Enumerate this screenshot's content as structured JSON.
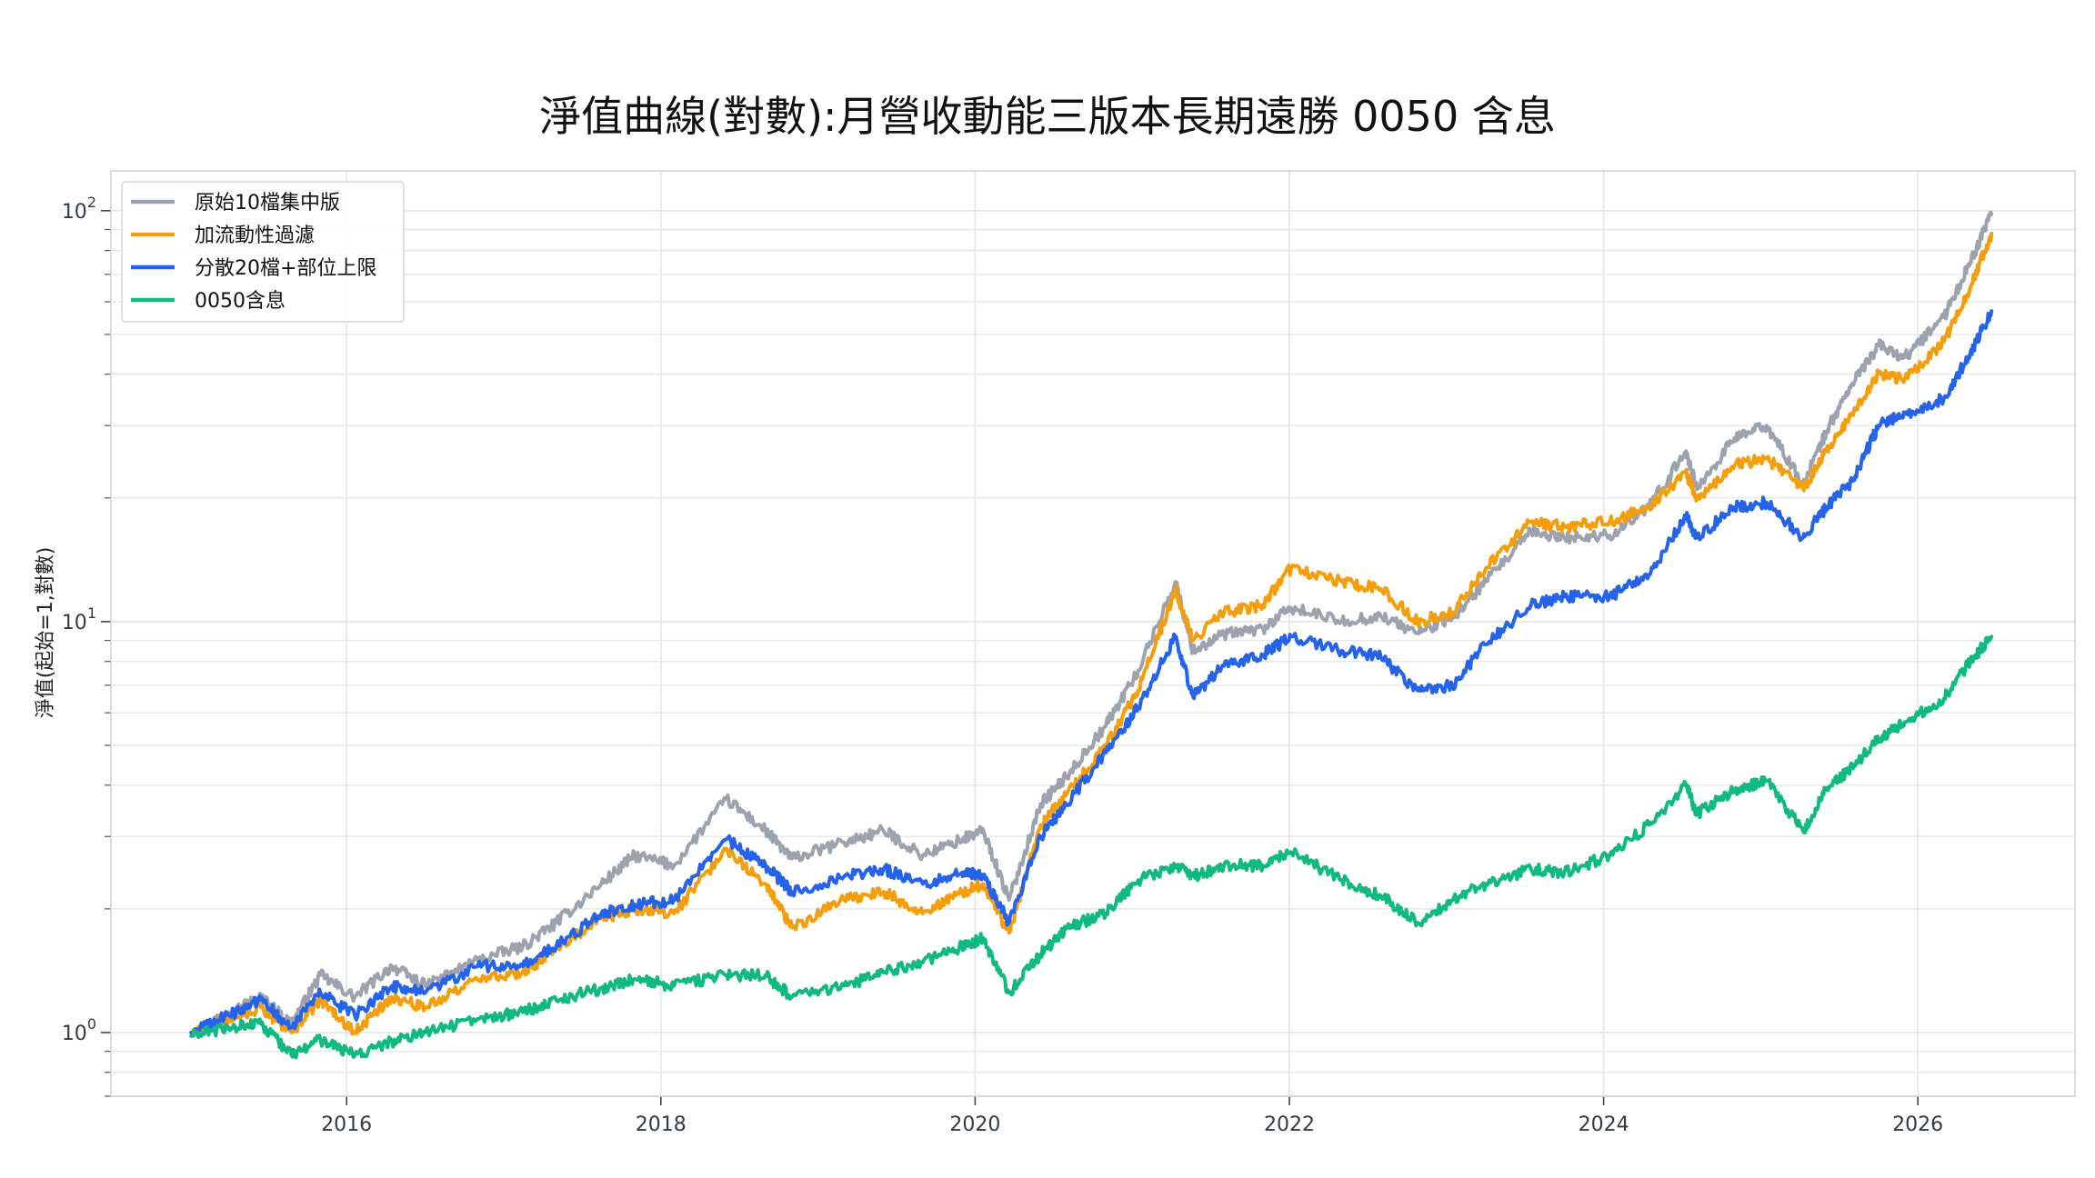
{
  "chart_data": {
    "type": "line",
    "title": "淨值曲線(對數):月營收動能三版本長期遠勝 0050 含息",
    "xlabel": "",
    "ylabel": "淨值(起始=1,對數)",
    "yscale": "log",
    "ylim": [
      0.7,
      125
    ],
    "xlim": [
      "2014-07-01",
      "2027-01-01"
    ],
    "x_ticks": [
      "2016",
      "2018",
      "2020",
      "2022",
      "2024",
      "2026"
    ],
    "y_ticks": [
      {
        "base": "10",
        "exp": "0",
        "value": 1
      },
      {
        "base": "10",
        "exp": "1",
        "value": 10
      },
      {
        "base": "10",
        "exp": "2",
        "value": 100
      }
    ],
    "grid": true,
    "legend_position": "top-left",
    "series": [
      {
        "name": "原始10檔集中版",
        "color": "#9ca3af",
        "points": [
          [
            "2015-01-05",
            1.0
          ],
          [
            "2015-04-01",
            1.12
          ],
          [
            "2015-06-15",
            1.22
          ],
          [
            "2015-08-25",
            1.05
          ],
          [
            "2015-11-01",
            1.38
          ],
          [
            "2016-01-20",
            1.22
          ],
          [
            "2016-04-15",
            1.45
          ],
          [
            "2016-07-01",
            1.3
          ],
          [
            "2016-11-01",
            1.5
          ],
          [
            "2017-02-15",
            1.62
          ],
          [
            "2017-05-01",
            1.85
          ],
          [
            "2017-08-15",
            2.3
          ],
          [
            "2017-11-01",
            2.7
          ],
          [
            "2018-02-01",
            2.55
          ],
          [
            "2018-06-01",
            3.7
          ],
          [
            "2018-09-01",
            3.1
          ],
          [
            "2018-11-01",
            2.65
          ],
          [
            "2019-03-01",
            2.9
          ],
          [
            "2019-06-01",
            3.1
          ],
          [
            "2019-09-01",
            2.7
          ],
          [
            "2019-12-01",
            2.95
          ],
          [
            "2020-01-20",
            3.1
          ],
          [
            "2020-03-19",
            2.1
          ],
          [
            "2020-06-01",
            3.6
          ],
          [
            "2020-08-01",
            4.2
          ],
          [
            "2020-11-01",
            5.6
          ],
          [
            "2021-01-15",
            7.6
          ],
          [
            "2021-04-10",
            12.5
          ],
          [
            "2021-05-20",
            8.5
          ],
          [
            "2021-08-01",
            9.3
          ],
          [
            "2021-11-01",
            9.6
          ],
          [
            "2022-01-05",
            10.8
          ],
          [
            "2022-05-01",
            10.0
          ],
          [
            "2022-08-01",
            10.3
          ],
          [
            "2022-10-25",
            9.4
          ],
          [
            "2023-01-15",
            10.2
          ],
          [
            "2023-04-01",
            12.5
          ],
          [
            "2023-07-15",
            16.5
          ],
          [
            "2023-10-01",
            16.0
          ],
          [
            "2024-01-15",
            16.2
          ],
          [
            "2024-04-15",
            19.0
          ],
          [
            "2024-07-10",
            26.0
          ],
          [
            "2024-08-05",
            21.0
          ],
          [
            "2024-11-01",
            28.0
          ],
          [
            "2025-01-15",
            30.0
          ],
          [
            "2025-04-08",
            21.5
          ],
          [
            "2025-06-01",
            29.0
          ],
          [
            "2025-08-01",
            38.0
          ],
          [
            "2025-10-01",
            47.0
          ],
          [
            "2025-12-01",
            44.0
          ],
          [
            "2026-03-01",
            55.0
          ],
          [
            "2026-05-01",
            75.0
          ],
          [
            "2026-06-20",
            98.0
          ]
        ]
      },
      {
        "name": "加流動性過濾",
        "color": "#f59e0b",
        "points": [
          [
            "2015-01-05",
            1.0
          ],
          [
            "2015-04-01",
            1.08
          ],
          [
            "2015-06-15",
            1.15
          ],
          [
            "2015-08-25",
            1.0
          ],
          [
            "2015-11-01",
            1.2
          ],
          [
            "2016-01-20",
            1.0
          ],
          [
            "2016-04-15",
            1.22
          ],
          [
            "2016-07-01",
            1.15
          ],
          [
            "2016-11-01",
            1.35
          ],
          [
            "2017-02-15",
            1.4
          ],
          [
            "2017-05-01",
            1.6
          ],
          [
            "2017-08-15",
            1.9
          ],
          [
            "2017-11-01",
            2.0
          ],
          [
            "2018-02-01",
            1.95
          ],
          [
            "2018-06-01",
            2.8
          ],
          [
            "2018-09-01",
            2.3
          ],
          [
            "2018-11-01",
            1.8
          ],
          [
            "2019-03-01",
            2.1
          ],
          [
            "2019-06-01",
            2.2
          ],
          [
            "2019-09-01",
            1.95
          ],
          [
            "2019-12-01",
            2.2
          ],
          [
            "2020-01-20",
            2.3
          ],
          [
            "2020-03-19",
            1.75
          ],
          [
            "2020-06-01",
            3.2
          ],
          [
            "2020-08-01",
            3.8
          ],
          [
            "2020-11-01",
            5.0
          ],
          [
            "2021-01-15",
            6.8
          ],
          [
            "2021-04-10",
            12.0
          ],
          [
            "2021-05-20",
            9.0
          ],
          [
            "2021-08-01",
            10.5
          ],
          [
            "2021-11-01",
            11.0
          ],
          [
            "2022-01-05",
            13.5
          ],
          [
            "2022-05-01",
            12.5
          ],
          [
            "2022-08-01",
            12.0
          ],
          [
            "2022-10-25",
            10.0
          ],
          [
            "2023-01-15",
            10.5
          ],
          [
            "2023-04-01",
            13.5
          ],
          [
            "2023-07-15",
            17.5
          ],
          [
            "2023-10-01",
            17.0
          ],
          [
            "2024-01-15",
            17.5
          ],
          [
            "2024-04-15",
            19.0
          ],
          [
            "2024-07-10",
            23.0
          ],
          [
            "2024-08-05",
            20.0
          ],
          [
            "2024-11-01",
            24.0
          ],
          [
            "2025-01-15",
            25.0
          ],
          [
            "2025-04-08",
            21.0
          ],
          [
            "2025-06-01",
            26.0
          ],
          [
            "2025-08-01",
            32.0
          ],
          [
            "2025-10-01",
            40.0
          ],
          [
            "2025-12-01",
            39.0
          ],
          [
            "2026-03-01",
            48.0
          ],
          [
            "2026-05-01",
            65.0
          ],
          [
            "2026-06-20",
            88.0
          ]
        ]
      },
      {
        "name": "分散20檔+部位上限",
        "color": "#2563eb",
        "points": [
          [
            "2015-01-05",
            1.0
          ],
          [
            "2015-04-01",
            1.1
          ],
          [
            "2015-06-15",
            1.2
          ],
          [
            "2015-08-25",
            1.03
          ],
          [
            "2015-11-01",
            1.25
          ],
          [
            "2016-01-20",
            1.1
          ],
          [
            "2016-04-15",
            1.3
          ],
          [
            "2016-07-01",
            1.25
          ],
          [
            "2016-11-01",
            1.45
          ],
          [
            "2017-02-15",
            1.45
          ],
          [
            "2017-05-01",
            1.62
          ],
          [
            "2017-08-15",
            1.95
          ],
          [
            "2017-11-01",
            2.05
          ],
          [
            "2018-02-01",
            2.1
          ],
          [
            "2018-06-01",
            2.95
          ],
          [
            "2018-09-01",
            2.55
          ],
          [
            "2018-11-01",
            2.2
          ],
          [
            "2019-03-01",
            2.4
          ],
          [
            "2019-06-01",
            2.5
          ],
          [
            "2019-09-01",
            2.3
          ],
          [
            "2019-12-01",
            2.45
          ],
          [
            "2020-01-20",
            2.4
          ],
          [
            "2020-03-19",
            1.85
          ],
          [
            "2020-06-01",
            3.0
          ],
          [
            "2020-08-01",
            3.6
          ],
          [
            "2020-11-01",
            4.8
          ],
          [
            "2021-01-15",
            6.2
          ],
          [
            "2021-04-10",
            9.2
          ],
          [
            "2021-05-20",
            6.6
          ],
          [
            "2021-08-01",
            7.8
          ],
          [
            "2021-11-01",
            8.3
          ],
          [
            "2022-01-05",
            9.2
          ],
          [
            "2022-05-01",
            8.5
          ],
          [
            "2022-08-01",
            8.2
          ],
          [
            "2022-10-25",
            6.8
          ],
          [
            "2023-01-15",
            7.0
          ],
          [
            "2023-04-01",
            8.8
          ],
          [
            "2023-07-15",
            11.0
          ],
          [
            "2023-10-01",
            11.5
          ],
          [
            "2024-01-15",
            11.5
          ],
          [
            "2024-04-15",
            13.0
          ],
          [
            "2024-07-10",
            18.0
          ],
          [
            "2024-08-05",
            16.0
          ],
          [
            "2024-11-01",
            19.0
          ],
          [
            "2025-01-15",
            19.5
          ],
          [
            "2025-04-08",
            16.0
          ],
          [
            "2025-06-01",
            19.0
          ],
          [
            "2025-08-01",
            22.0
          ],
          [
            "2025-10-01",
            30.0
          ],
          [
            "2025-12-01",
            32.0
          ],
          [
            "2026-03-01",
            35.0
          ],
          [
            "2026-05-01",
            45.0
          ],
          [
            "2026-06-20",
            57.0
          ]
        ]
      },
      {
        "name": "0050含息",
        "color": "#10b981",
        "points": [
          [
            "2015-01-05",
            0.98
          ],
          [
            "2015-04-01",
            1.03
          ],
          [
            "2015-06-15",
            1.05
          ],
          [
            "2015-08-25",
            0.88
          ],
          [
            "2015-11-01",
            0.96
          ],
          [
            "2016-01-20",
            0.88
          ],
          [
            "2016-04-15",
            0.95
          ],
          [
            "2016-07-01",
            1.0
          ],
          [
            "2016-11-01",
            1.08
          ],
          [
            "2017-02-15",
            1.12
          ],
          [
            "2017-05-01",
            1.2
          ],
          [
            "2017-08-15",
            1.28
          ],
          [
            "2017-11-01",
            1.35
          ],
          [
            "2018-02-01",
            1.3
          ],
          [
            "2018-06-01",
            1.38
          ],
          [
            "2018-09-01",
            1.38
          ],
          [
            "2018-11-01",
            1.22
          ],
          [
            "2019-03-01",
            1.3
          ],
          [
            "2019-06-01",
            1.4
          ],
          [
            "2019-09-01",
            1.48
          ],
          [
            "2019-12-01",
            1.62
          ],
          [
            "2020-01-20",
            1.7
          ],
          [
            "2020-03-19",
            1.25
          ],
          [
            "2020-06-01",
            1.55
          ],
          [
            "2020-08-01",
            1.8
          ],
          [
            "2020-11-01",
            1.95
          ],
          [
            "2021-01-15",
            2.35
          ],
          [
            "2021-04-10",
            2.55
          ],
          [
            "2021-05-20",
            2.4
          ],
          [
            "2021-08-01",
            2.55
          ],
          [
            "2021-11-01",
            2.55
          ],
          [
            "2022-01-05",
            2.75
          ],
          [
            "2022-05-01",
            2.35
          ],
          [
            "2022-08-01",
            2.15
          ],
          [
            "2022-10-25",
            1.85
          ],
          [
            "2023-01-15",
            2.1
          ],
          [
            "2023-04-01",
            2.3
          ],
          [
            "2023-07-15",
            2.5
          ],
          [
            "2023-10-01",
            2.45
          ],
          [
            "2024-01-15",
            2.7
          ],
          [
            "2024-04-15",
            3.2
          ],
          [
            "2024-07-10",
            4.0
          ],
          [
            "2024-08-05",
            3.4
          ],
          [
            "2024-11-01",
            3.9
          ],
          [
            "2025-01-15",
            4.1
          ],
          [
            "2025-04-08",
            3.1
          ],
          [
            "2025-06-01",
            3.9
          ],
          [
            "2025-08-01",
            4.4
          ],
          [
            "2025-10-01",
            5.2
          ],
          [
            "2025-12-01",
            5.7
          ],
          [
            "2026-03-01",
            6.5
          ],
          [
            "2026-05-01",
            8.0
          ],
          [
            "2026-06-20",
            9.2
          ]
        ]
      }
    ]
  },
  "colors": {
    "grid": "#e5e7eb",
    "axis": "#cbd5e1",
    "tick_text": "#333a44"
  }
}
